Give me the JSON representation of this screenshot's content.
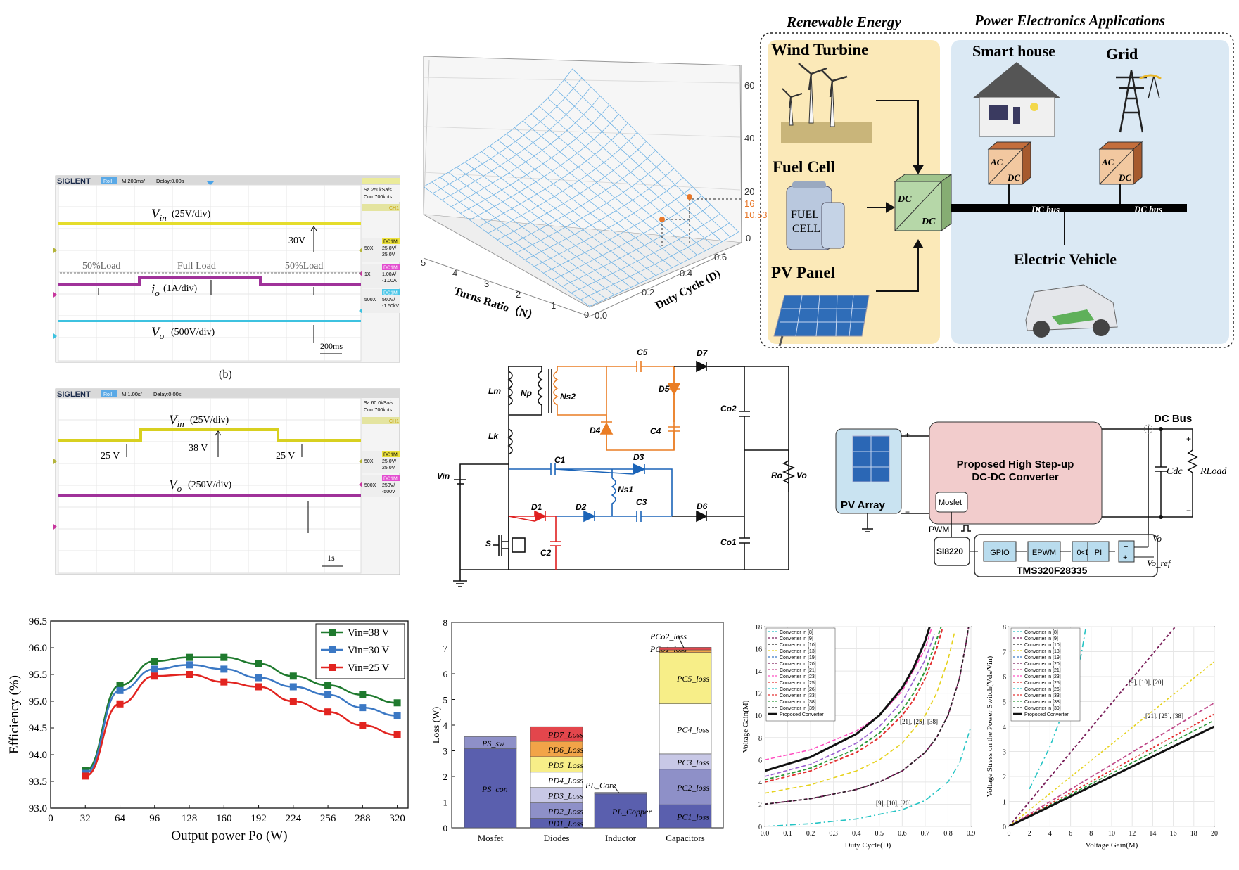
{
  "scope1": {
    "brand": "SIGLENT",
    "mode": "Roll",
    "timebase": "M 200ms/",
    "delay": "Delay:0.00s",
    "sample_rate": "Sa 250kSa/s",
    "memory": "Curr 700kpts",
    "ch1_mark": "CH1",
    "ch1_box": [
      "DC1M",
      "50X",
      "25.0V/",
      "25.0V"
    ],
    "ch2_box": [
      "DC1M",
      "1X",
      "1.00A/",
      "-1.00A"
    ],
    "ch3_box": [
      "DC1M",
      "500X",
      "500V/",
      "-1.50kV"
    ],
    "vin_label": "(25V/div)",
    "io_label": "(1A/div)",
    "vo_label": "(500V/div)",
    "level_30v": "30V",
    "load1": "50%Load",
    "load2": "Full Load",
    "load3": "50%Load",
    "time_div": "200ms",
    "caption": "(b)"
  },
  "scope2": {
    "brand": "SIGLENT",
    "mode": "Roll",
    "timebase": "M 1.00s/",
    "delay": "Delay:0.00s",
    "sample_rate": "Sa 60.0kSa/s",
    "memory": "Curr 700kpts",
    "ch1_mark": "CH1",
    "ch1_box": [
      "DC1M",
      "50X",
      "25.0V/",
      "25.0V"
    ],
    "ch2_box": [
      "DC1M",
      "500X",
      "250V/",
      "-500V"
    ],
    "vin_label": "(25V/div)",
    "vo_label": "(250V/div)",
    "v25a": "25 V",
    "v38": "38 V",
    "v25b": "25 V",
    "time_div": "1s"
  },
  "surface3d": {
    "z_ticks": [
      "60",
      "40",
      "20",
      "16",
      "10.53",
      "0"
    ],
    "highlight_color": "#e8782a",
    "x_axis_label": "Turns Ratio（N）",
    "x_ticks": [
      "5",
      "4",
      "3",
      "2",
      "1",
      "0"
    ],
    "y_axis_label": "Duty Cycle (D)",
    "y_ticks": [
      "0.0",
      "0.2",
      "0.4",
      "0.6"
    ],
    "mesh_color": "#6fb2e4"
  },
  "apps": {
    "renewable_title": "Renewable Energy",
    "pe_title": "Power Electronics Applications",
    "wind": "Wind Turbine",
    "fuel": "Fuel Cell",
    "pv": "PV Panel",
    "fuel_cell_text": [
      "FUEL",
      "CELL"
    ],
    "house": "Smart house",
    "grid": "Grid",
    "ev": "Electric Vehicle",
    "conv_dc_top": "DC",
    "conv_dc_bottom": "DC",
    "ac": "AC",
    "dc": "DC",
    "dc_bus": "DC bus"
  },
  "circuit": {
    "labels": [
      "Lm",
      "Np",
      "Ns2",
      "C5",
      "D7",
      "D5",
      "Co2",
      "D4",
      "C4",
      "Lk",
      "Vin",
      "C1",
      "D3",
      "Ns1",
      "C3",
      "Ro",
      "Vo",
      "D1",
      "D2",
      "D6",
      "S",
      "C2",
      "Co1"
    ],
    "orange": "#ea7d24",
    "blue": "#1b64b8",
    "red": "#e02020"
  },
  "system": {
    "dc_bus": "DC Bus",
    "converter_line1": "Proposed High Step-up",
    "converter_line2": "DC-DC Converter",
    "pv_array": "PV Array",
    "mosfet": "Mosfet",
    "pwm": "PWM",
    "si8220": "SI8220",
    "blocks": [
      "GPIO",
      "EPWM",
      "0<D<1",
      "PI"
    ],
    "mcu": "TMS320F28335",
    "cdc": "Cdc",
    "rload": "RLoad",
    "vo": "Vo",
    "vo_ref": "Vo_ref"
  },
  "chart_data": [
    {
      "type": "line",
      "xlabel": "Output power Po (W)",
      "ylabel": "Efficiency (%)",
      "x": [
        32,
        64,
        96,
        128,
        160,
        192,
        224,
        256,
        288,
        320
      ],
      "xlim": [
        0,
        330
      ],
      "ylim": [
        93.0,
        96.5
      ],
      "x_ticks": [
        "0",
        "32",
        "64",
        "96",
        "128",
        "160",
        "192",
        "224",
        "256",
        "288",
        "320"
      ],
      "y_ticks": [
        "93.0",
        "93.5",
        "94.0",
        "94.5",
        "95.0",
        "95.5",
        "96.0",
        "96.5"
      ],
      "series": [
        {
          "name": "Vin=38 V",
          "color": "#1f7a2e",
          "values": [
            93.7,
            95.3,
            95.75,
            95.82,
            95.82,
            95.7,
            95.47,
            95.3,
            95.12,
            94.97
          ]
        },
        {
          "name": "Vin=30 V",
          "color": "#3b78c4",
          "values": [
            93.65,
            95.2,
            95.6,
            95.68,
            95.6,
            95.44,
            95.27,
            95.12,
            94.88,
            94.73
          ]
        },
        {
          "name": "Vin=25 V",
          "color": "#e22420",
          "values": [
            93.6,
            94.95,
            95.47,
            95.5,
            95.36,
            95.27,
            95.0,
            94.8,
            94.55,
            94.37
          ]
        }
      ],
      "legend": "top-right"
    },
    {
      "type": "bar",
      "ylabel": "Loss (W)",
      "ylim": [
        0,
        8
      ],
      "y_ticks": [
        "0",
        "1",
        "2",
        "3",
        "4",
        "5",
        "6",
        "7",
        "8"
      ],
      "categories": [
        "Mosfet",
        "Diodes",
        "Inductor",
        "Capacitors"
      ],
      "stacks": [
        [
          {
            "label": "PS_con",
            "value": 3.08,
            "color": "#5a5fae"
          },
          {
            "label": "PS_sw",
            "value": 0.47,
            "color": "#8e90c8"
          }
        ],
        [
          {
            "label": "PD1_Loss",
            "value": 0.37,
            "color": "#5a5fae"
          },
          {
            "label": "PD2_Loss",
            "value": 0.6,
            "color": "#8e90c8"
          },
          {
            "label": "PD3_Loss",
            "value": 0.6,
            "color": "#c8c8e6"
          },
          {
            "label": "PD4_Loss",
            "value": 0.6,
            "color": "#ffffff"
          },
          {
            "label": "PD5_Loss",
            "value": 0.6,
            "color": "#f7ee88"
          },
          {
            "label": "PD6_Loss",
            "value": 0.6,
            "color": "#f2a448"
          },
          {
            "label": "PD7_Loss",
            "value": 0.57,
            "color": "#e3464c"
          }
        ],
        [
          {
            "label": "PL_Copper",
            "value": 1.32,
            "color": "#5a5fae"
          },
          {
            "label": "PL_Core",
            "value": 0.06,
            "color": "#8e90c8"
          }
        ],
        [
          {
            "label": "PC1_loss",
            "value": 0.9,
            "color": "#5a5fae"
          },
          {
            "label": "PC2_loss",
            "value": 1.38,
            "color": "#8e90c8"
          },
          {
            "label": "PC3_loss",
            "value": 0.6,
            "color": "#c8c8e6"
          },
          {
            "label": "PC4_loss",
            "value": 1.95,
            "color": "#ffffff"
          },
          {
            "label": "PC5_loss",
            "value": 2.0,
            "color": "#f7ee88"
          },
          {
            "label": "PCo1_loss",
            "value": 0.1,
            "color": "#f2a448"
          },
          {
            "label": "PCo2_loss",
            "value": 0.1,
            "color": "#e3464c"
          }
        ]
      ]
    },
    {
      "type": "line",
      "xlabel": "Duty Cycle(D)",
      "ylabel": "Voltage Gain(M)",
      "xlim": [
        0,
        0.9
      ],
      "ylim": [
        0,
        18
      ],
      "x_ticks": [
        "0.0",
        "0.1",
        "0.2",
        "0.3",
        "0.4",
        "0.5",
        "0.6",
        "0.7",
        "0.8",
        "0.9"
      ],
      "y_ticks": [
        "0",
        "2",
        "4",
        "6",
        "8",
        "10",
        "12",
        "14",
        "16",
        "18"
      ],
      "legend_entries": [
        "Converter in [8]",
        "Converter in [9]",
        "Converter in [10]",
        "Converter in [13]",
        "Converter in [19]",
        "Converter in [20]",
        "Converter in [21]",
        "Converter in [23]",
        "Converter in [25]",
        "Converter in [26]",
        "Converter in [33]",
        "Converter in [38]",
        "Converter in [39]",
        "Proposed Converter"
      ],
      "annotations": [
        "[21], [25], [38]",
        "[9], [10], [20]"
      ],
      "series": [
        {
          "color": "#25c4c4",
          "dash": "8 4 2 4",
          "width": 1.6,
          "values": [
            [
              0,
              0
            ],
            [
              0.2,
              0.25
            ],
            [
              0.4,
              0.67
            ],
            [
              0.6,
              1.5
            ],
            [
              0.7,
              2.33
            ],
            [
              0.8,
              4.0
            ],
            [
              0.85,
              5.7
            ],
            [
              0.9,
              9.0
            ]
          ]
        },
        {
          "color": "#7a1f5a",
          "dash": "5 3",
          "width": 2,
          "values": [
            [
              0,
              2
            ],
            [
              0.2,
              2.5
            ],
            [
              0.4,
              3.33
            ],
            [
              0.5,
              4.0
            ],
            [
              0.6,
              5.0
            ],
            [
              0.7,
              6.67
            ],
            [
              0.75,
              8.0
            ],
            [
              0.8,
              10
            ],
            [
              0.85,
              13.33
            ],
            [
              0.88,
              16.7
            ],
            [
              0.89,
              18
            ]
          ]
        },
        {
          "color": "#222222",
          "dash": "4 3",
          "width": 1.5,
          "values": [
            [
              0,
              2
            ],
            [
              0.2,
              2.5
            ],
            [
              0.4,
              3.33
            ],
            [
              0.5,
              4.0
            ],
            [
              0.6,
              5.0
            ],
            [
              0.7,
              6.67
            ],
            [
              0.75,
              8.0
            ],
            [
              0.8,
              10
            ],
            [
              0.85,
              13.33
            ],
            [
              0.88,
              16.7
            ],
            [
              0.89,
              18
            ]
          ]
        },
        {
          "color": "#e6d21e",
          "dash": "6 4",
          "width": 1.6,
          "values": [
            [
              0,
              3
            ],
            [
              0.2,
              3.75
            ],
            [
              0.4,
              5.0
            ],
            [
              0.5,
              6.0
            ],
            [
              0.6,
              7.5
            ],
            [
              0.7,
              10
            ],
            [
              0.75,
              12
            ],
            [
              0.8,
              15
            ],
            [
              0.83,
              17.6
            ]
          ]
        },
        {
          "color": "#e33030",
          "dash": "5 3",
          "width": 2,
          "values": [
            [
              0,
              4
            ],
            [
              0.2,
              5.0
            ],
            [
              0.4,
              6.67
            ],
            [
              0.5,
              8.0
            ],
            [
              0.6,
              10
            ],
            [
              0.65,
              11.4
            ],
            [
              0.7,
              13.33
            ],
            [
              0.75,
              16
            ],
            [
              0.775,
              17.8
            ]
          ]
        },
        {
          "color": "#2d9a3a",
          "dash": "5 3",
          "width": 2,
          "values": [
            [
              0,
              4.2
            ],
            [
              0.2,
              5.25
            ],
            [
              0.4,
              7.0
            ],
            [
              0.5,
              8.4
            ],
            [
              0.6,
              10.5
            ],
            [
              0.65,
              12
            ],
            [
              0.7,
              14
            ],
            [
              0.75,
              16.8
            ],
            [
              0.77,
              18
            ]
          ]
        },
        {
          "color": "#9a5fd0",
          "dash": "6 3",
          "width": 1.6,
          "values": [
            [
              0,
              4.5
            ],
            [
              0.2,
              5.6
            ],
            [
              0.4,
              7.5
            ],
            [
              0.5,
              9.0
            ],
            [
              0.6,
              11.25
            ],
            [
              0.7,
              15
            ],
            [
              0.74,
              17.3
            ]
          ]
        },
        {
          "color": "#ff4fc0",
          "dash": "6 3",
          "width": 1.6,
          "values": [
            [
              0,
              6
            ],
            [
              0.2,
              6.9
            ],
            [
              0.4,
              8.6
            ],
            [
              0.5,
              10
            ],
            [
              0.6,
              12.2
            ],
            [
              0.7,
              16
            ],
            [
              0.73,
              18
            ]
          ]
        },
        {
          "color": "#111111",
          "dash": "",
          "width": 3,
          "values": [
            [
              0,
              5
            ],
            [
              0.2,
              6.25
            ],
            [
              0.4,
              8.33
            ],
            [
              0.5,
              10
            ],
            [
              0.6,
              12.5
            ],
            [
              0.65,
              14.3
            ],
            [
              0.7,
              16.7
            ],
            [
              0.72,
              18
            ]
          ]
        }
      ]
    },
    {
      "type": "line",
      "xlabel": "Voltage Gain(M)",
      "ylabel": "Voltage Stress on the Power Switch(Vds/Vin)",
      "xlim": [
        0,
        20
      ],
      "ylim": [
        0,
        8
      ],
      "x_ticks": [
        "0",
        "2",
        "4",
        "6",
        "8",
        "10",
        "12",
        "14",
        "16",
        "18",
        "20"
      ],
      "y_ticks": [
        "0",
        "1",
        "2",
        "3",
        "4",
        "5",
        "6",
        "7",
        "8"
      ],
      "legend_entries": [
        "Converter in [8]",
        "Converter in [9]",
        "Converter in [10]",
        "Converter in [13]",
        "Converter in [19]",
        "Converter in [20]",
        "Converter in [21]",
        "Converter in [23]",
        "Converter in [25]",
        "Converter in [26]",
        "Converter in [33]",
        "Converter in [38]",
        "Converter in [39]",
        "Proposed Converter"
      ],
      "annotations": [
        "[9], [10], [20]",
        "[21], [25], [38]"
      ],
      "series": [
        {
          "color": "#25c4c4",
          "dash": "8 4 2 4",
          "width": 1.6,
          "values": [
            [
              2,
              1.5
            ],
            [
              4,
              3.2
            ],
            [
              6,
              5.4
            ],
            [
              7,
              6.8
            ],
            [
              7.5,
              8
            ]
          ]
        },
        {
          "color": "#7a1f5a",
          "dash": "4 3",
          "width": 2,
          "values": [
            [
              0,
              0
            ],
            [
              16,
              7.9
            ],
            [
              16.2,
              8
            ]
          ]
        },
        {
          "color": "#e6d21e",
          "dash": "3 3",
          "width": 1.6,
          "values": [
            [
              0,
              0
            ],
            [
              20,
              6.6
            ]
          ]
        },
        {
          "color": "#c04a8a",
          "dash": "6 3",
          "width": 1.8,
          "values": [
            [
              0,
              0
            ],
            [
              20,
              4.95
            ]
          ]
        },
        {
          "color": "#e33030",
          "dash": "3 3",
          "width": 1.8,
          "values": [
            [
              0,
              0
            ],
            [
              20,
              4.5
            ]
          ]
        },
        {
          "color": "#2d9a3a",
          "dash": "5 3",
          "width": 1.6,
          "values": [
            [
              0,
              0
            ],
            [
              20,
              4.25
            ]
          ]
        },
        {
          "color": "#111111",
          "dash": "",
          "width": 3,
          "values": [
            [
              0,
              0
            ],
            [
              20,
              4.0
            ]
          ]
        }
      ]
    }
  ]
}
